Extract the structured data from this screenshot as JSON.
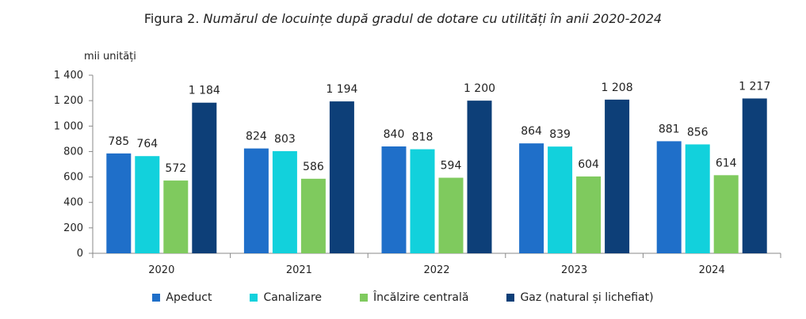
{
  "figure_prefix": "Figura 2. ",
  "figure_title": "Numărul de locuințe după gradul de dotare cu utilități în anii 2020-2024",
  "chart_data": {
    "type": "bar",
    "title": "Figura 2. Numărul de locuințe după gradul de dotare cu utilități în anii 2020-2024",
    "ylabel": "mii unități",
    "xlabel": "",
    "ylim": [
      0,
      1400
    ],
    "yticks": [
      0,
      200,
      400,
      600,
      800,
      1000,
      1200,
      1400
    ],
    "ytick_labels": [
      "0",
      "200",
      "400",
      "600",
      "800",
      "1 000",
      "1 200",
      "1 400"
    ],
    "categories": [
      "2020",
      "2021",
      "2022",
      "2023",
      "2024"
    ],
    "legend_position": "bottom",
    "grid": false,
    "series": [
      {
        "name": "Apeduct",
        "color": "#1f6fc9",
        "values": [
          785,
          824,
          840,
          864,
          881
        ],
        "labels": [
          "785",
          "824",
          "840",
          "864",
          "881"
        ]
      },
      {
        "name": "Canalizare",
        "color": "#12d1dc",
        "values": [
          764,
          803,
          818,
          839,
          856
        ],
        "labels": [
          "764",
          "803",
          "818",
          "839",
          "856"
        ]
      },
      {
        "name": "Încălzire centrală",
        "color": "#7fca5e",
        "values": [
          572,
          586,
          594,
          604,
          614
        ],
        "labels": [
          "572",
          "586",
          "594",
          "604",
          "614"
        ]
      },
      {
        "name": "Gaz (natural și lichefiat)",
        "color": "#0d3f78",
        "values": [
          1184,
          1194,
          1200,
          1208,
          1217
        ],
        "labels": [
          "1 184",
          "1 194",
          "1 200",
          "1 208",
          "1 217"
        ]
      }
    ]
  }
}
